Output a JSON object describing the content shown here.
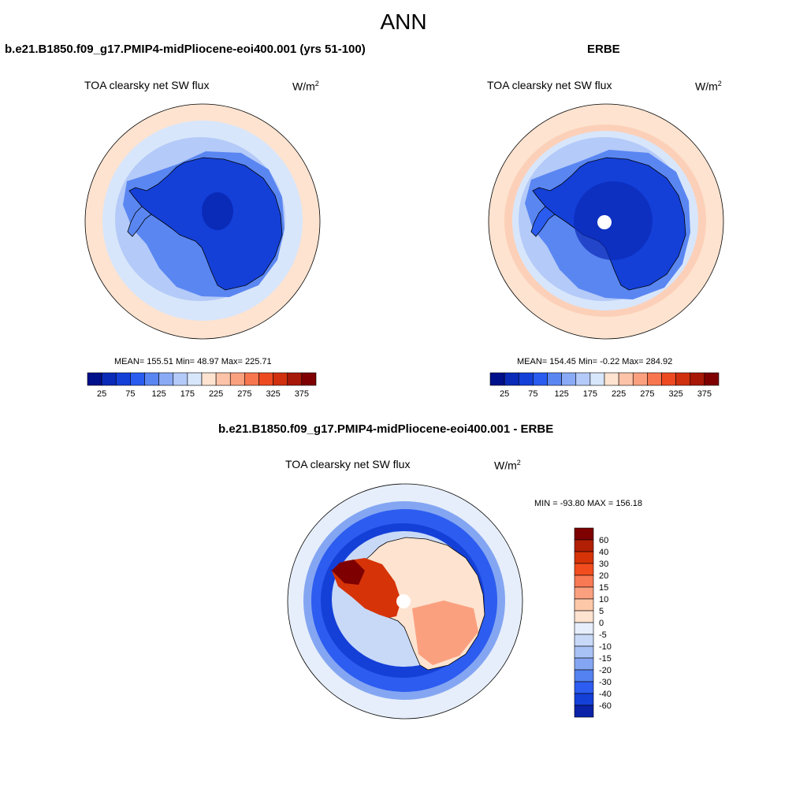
{
  "figure_title": "ANN",
  "panels": {
    "model": {
      "title": "b.e21.B1850.f09_g17.PMIP4-midPliocene-eoi400.001 (yrs 51-100)",
      "variable": "TOA clearsky net SW flux",
      "unit_base": "W/m",
      "unit_exp": "2",
      "stats": "MEAN= 155.51  Min=  48.97  Max= 225.71",
      "colorbar_ticks": [
        "25",
        "75",
        "125",
        "175",
        "225",
        "275",
        "325",
        "375"
      ]
    },
    "obs": {
      "title": "ERBE",
      "variable": "TOA clearsky net SW flux",
      "unit_base": "W/m",
      "unit_exp": "2",
      "stats": "MEAN= 154.45  Min=  -0.22  Max= 284.92",
      "colorbar_ticks": [
        "25",
        "75",
        "125",
        "175",
        "225",
        "275",
        "325",
        "375"
      ]
    },
    "diff": {
      "title": "b.e21.B1850.f09_g17.PMIP4-midPliocene-eoi400.001 - ERBE",
      "variable": "TOA clearsky net SW flux",
      "unit_base": "W/m",
      "unit_exp": "2",
      "stats": "MIN = -93.80 MAX = 156.18",
      "colorbar_ticks": [
        "60",
        "40",
        "30",
        "20",
        "15",
        "10",
        "5",
        "0",
        "-5",
        "-10",
        "-15",
        "-20",
        "-30",
        "-40",
        "-60"
      ]
    }
  },
  "colors": {
    "abs_scale": [
      "#000f8a",
      "#0a2ab8",
      "#1440d8",
      "#2a5cf0",
      "#5a86f2",
      "#8aaaf5",
      "#b4caf8",
      "#d8e6fb",
      "#fde3d0",
      "#fcc3a8",
      "#fba07f",
      "#f77650",
      "#ee4a22",
      "#d0300e",
      "#a81808",
      "#7e0000"
    ],
    "diff_scale": [
      "#7e0000",
      "#b11f04",
      "#d63308",
      "#f24d1e",
      "#f87a54",
      "#fba07f",
      "#fcc8a8",
      "#fde3d0",
      "#e6eefb",
      "#c8d9f8",
      "#a8c2f5",
      "#84a6f2",
      "#5482f0",
      "#2d5cf0",
      "#1440d8",
      "#0a22a8"
    ],
    "ocean_far_abs": "#fde3d0",
    "ocean_mid_abs": "#d8e6fb",
    "ocean_near_abs": "#b4caf8",
    "coast_abs": "#5a86f2",
    "land_abs": "#1440d8",
    "land_core_abs": "#0a2ab8"
  }
}
